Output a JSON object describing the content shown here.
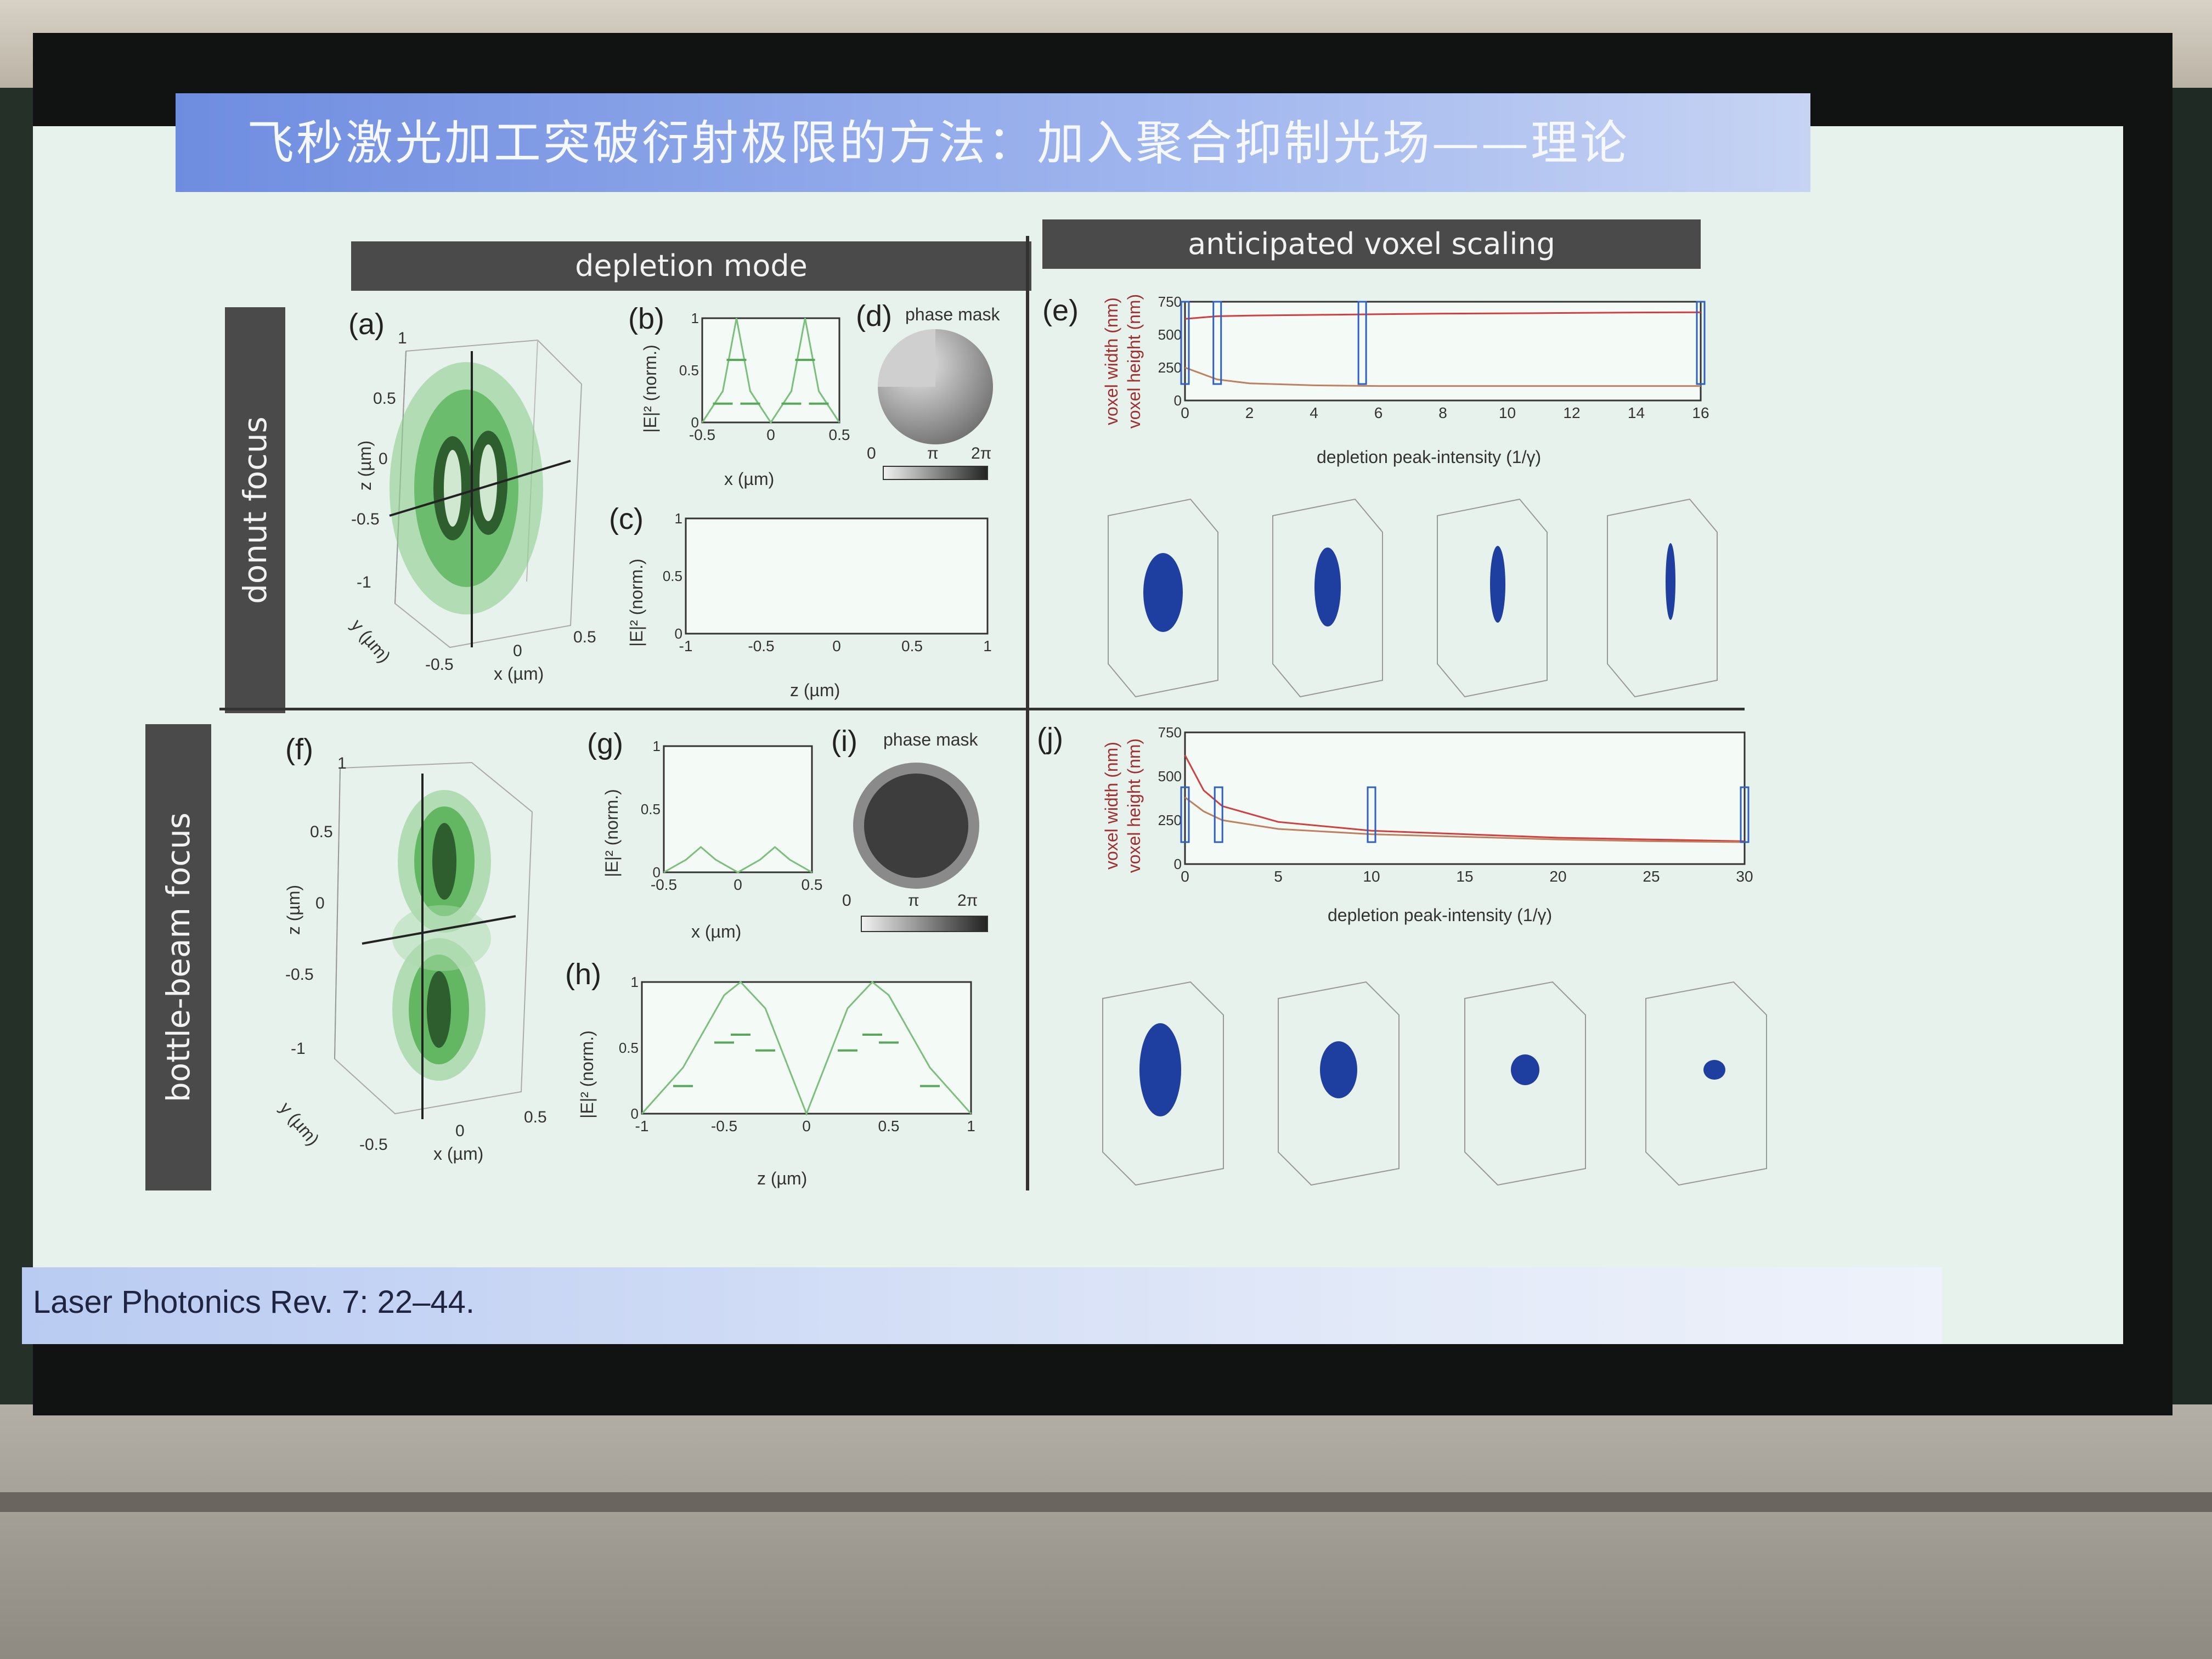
{
  "slide": {
    "title": "飞秒激光加工突破衍射极限的方法：加入聚合抑制光场——理论",
    "footer": "Laser Photonics Rev. 7: 22–44."
  },
  "figure": {
    "header_left": "depletion mode",
    "header_right": "anticipated voxel scaling",
    "row_top": "donut focus",
    "row_bottom": "bottle-beam focus",
    "panels": {
      "a": "(a)",
      "b": "(b)",
      "c": "(c)",
      "d": "(d)",
      "e": "(e)",
      "f": "(f)",
      "g": "(g)",
      "h": "(h)",
      "i": "(i)",
      "j": "(j)"
    },
    "phase_mask_label": "phase mask",
    "phase_ticks": [
      "0",
      "π",
      "2π"
    ],
    "axis": {
      "x_um": "x (µm)",
      "y_um": "y (µm)",
      "z_um": "z (µm)",
      "norm": "|E|² (norm.)",
      "voxel_width": "voxel width (nm)",
      "voxel_height": "voxel height (nm)",
      "depletion": "depletion peak-intensity (1/γ)"
    },
    "ticks_small": [
      "-0.5",
      "0",
      "0.5"
    ],
    "ticks_z": [
      "-1",
      "-0.5",
      "0",
      "0.5",
      "1"
    ],
    "ticks_norm": [
      "0",
      "0.5",
      "1"
    ],
    "ticks_3d_z": [
      "1",
      "0.5",
      "0",
      "-0.5",
      "-1"
    ]
  },
  "chart_data": [
    {
      "type": "line",
      "panel": "(e)",
      "xlabel": "depletion peak-intensity (1/γ)",
      "ylabel": "voxel width (nm) / voxel height (nm)",
      "xlim": [
        0,
        16
      ],
      "ylim": [
        0,
        750
      ],
      "xticks": [
        "0",
        "2",
        "4",
        "6",
        "8",
        "10",
        "12",
        "14",
        "16"
      ],
      "yticks": [
        "0",
        "250",
        "500",
        "750"
      ],
      "x": [
        0,
        1,
        2,
        4,
        6,
        8,
        10,
        12,
        14,
        16
      ],
      "series": [
        {
          "values": [
            620,
            640,
            645,
            650,
            655,
            660,
            662,
            665,
            668,
            670
          ],
          "color": "#d04040"
        },
        {
          "values": [
            250,
            160,
            130,
            115,
            110,
            110,
            110,
            110,
            110,
            110
          ],
          "color": "#c08060"
        }
      ]
    },
    {
      "type": "line",
      "panel": "(j)",
      "xlabel": "depletion peak-intensity (1/γ)",
      "ylabel": "voxel width (nm) / voxel height (nm)",
      "xlim": [
        0,
        30
      ],
      "ylim": [
        0,
        750
      ],
      "xticks": [
        "0",
        "5",
        "10",
        "15",
        "20",
        "25",
        "30"
      ],
      "yticks": [
        "0",
        "250",
        "500",
        "750"
      ],
      "x": [
        0,
        1,
        2,
        5,
        10,
        15,
        20,
        25,
        30
      ],
      "series": [
        {
          "values": [
            620,
            420,
            330,
            240,
            190,
            170,
            150,
            140,
            130
          ],
          "color": "#d04040"
        },
        {
          "values": [
            380,
            300,
            250,
            200,
            170,
            155,
            140,
            130,
            125
          ],
          "color": "#c08060"
        }
      ]
    },
    {
      "type": "line",
      "panel": "(b)",
      "xlabel": "x (µm)",
      "ylabel": "|E|² (norm.)",
      "xlim": [
        -0.5,
        0.5
      ],
      "ylim": [
        0,
        1
      ],
      "x": [
        -0.5,
        -0.35,
        -0.25,
        -0.15,
        0,
        0.15,
        0.25,
        0.35,
        0.5
      ],
      "series": [
        {
          "values": [
            0,
            0.3,
            1,
            0.3,
            0,
            0.3,
            1,
            0.3,
            0
          ],
          "color": "#7ac07a"
        }
      ]
    },
    {
      "type": "line",
      "panel": "(g)",
      "xlabel": "x (µm)",
      "ylabel": "|E|² (norm.)",
      "xlim": [
        -0.5,
        0.5
      ],
      "ylim": [
        0,
        1
      ],
      "x": [
        -0.5,
        -0.35,
        -0.25,
        -0.15,
        0,
        0.15,
        0.25,
        0.35,
        0.5
      ],
      "series": [
        {
          "values": [
            0,
            0.1,
            0.2,
            0.1,
            0,
            0.1,
            0.2,
            0.1,
            0
          ],
          "color": "#7ac07a"
        }
      ]
    },
    {
      "type": "line",
      "panel": "(h)",
      "xlabel": "z (µm)",
      "ylabel": "|E|² (norm.)",
      "xlim": [
        -1,
        1
      ],
      "ylim": [
        0,
        1
      ],
      "x": [
        -1,
        -0.75,
        -0.5,
        -0.4,
        -0.25,
        0,
        0.25,
        0.4,
        0.5,
        0.75,
        1
      ],
      "series": [
        {
          "values": [
            0,
            0.35,
            0.9,
            1,
            0.8,
            0,
            0.8,
            1,
            0.9,
            0.35,
            0
          ],
          "color": "#7ac07a"
        }
      ]
    }
  ]
}
